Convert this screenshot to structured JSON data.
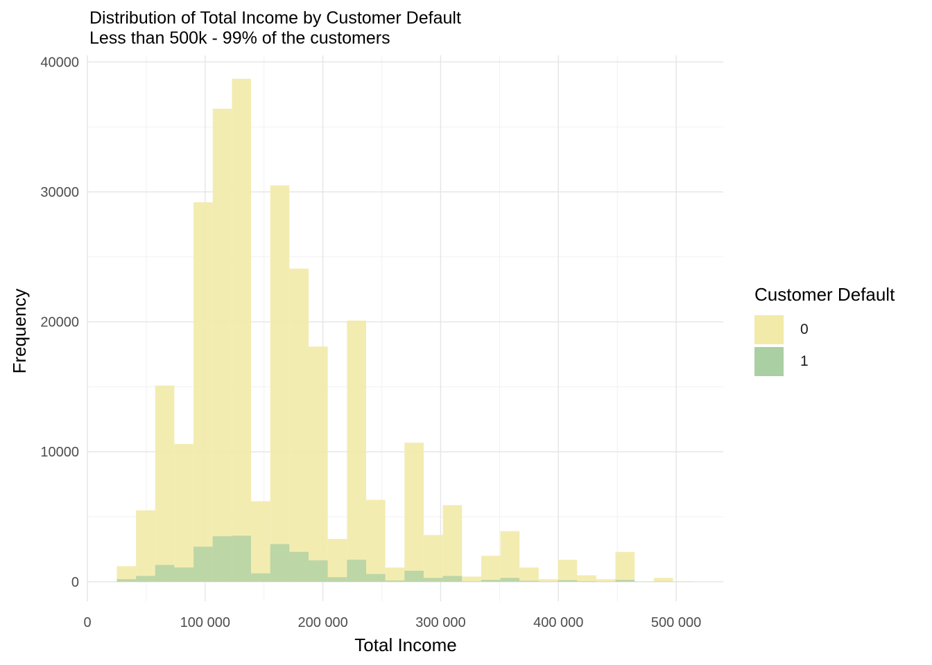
{
  "chart_data": {
    "type": "bar",
    "title": "Distribution of Total Income by Customer Default",
    "subtitle": "Less than 500k - 99% of the customers",
    "xlabel": "Total Income",
    "ylabel": "Frequency",
    "xlim": [
      0,
      540000
    ],
    "ylim": [
      -1500,
      40500
    ],
    "xticks": [
      {
        "value": 0,
        "label": "0"
      },
      {
        "value": 100000,
        "label": "100 000"
      },
      {
        "value": 200000,
        "label": "200 000"
      },
      {
        "value": 300000,
        "label": "300 000"
      },
      {
        "value": 400000,
        "label": "400 000"
      },
      {
        "value": 500000,
        "label": "500 000"
      }
    ],
    "yticks": [
      {
        "value": 0,
        "label": "0"
      },
      {
        "value": 10000,
        "label": "10000"
      },
      {
        "value": 20000,
        "label": "20000"
      },
      {
        "value": 30000,
        "label": "30000"
      },
      {
        "value": 40000,
        "label": "40000"
      }
    ],
    "grid": true,
    "legend": {
      "title": "Customer Default",
      "position": "right"
    },
    "bins": {
      "start": 25000,
      "width": 16286,
      "count": 30
    },
    "series": [
      {
        "name": "0",
        "color": "#F2EAA8",
        "values": [
          1200,
          5500,
          15100,
          10600,
          29200,
          36400,
          38700,
          6200,
          30500,
          24100,
          18100,
          3300,
          20100,
          6300,
          1100,
          10700,
          3600,
          5900,
          400,
          2000,
          3900,
          1100,
          200,
          1700,
          500,
          200,
          2300,
          50,
          300,
          50
        ]
      },
      {
        "name": "1",
        "color": "#A9CFA3",
        "values": [
          200,
          450,
          1300,
          1100,
          2700,
          3500,
          3550,
          650,
          2900,
          2300,
          1650,
          350,
          1700,
          600,
          100,
          850,
          300,
          450,
          30,
          150,
          300,
          80,
          20,
          130,
          40,
          20,
          150,
          10,
          20,
          5
        ]
      }
    ]
  }
}
